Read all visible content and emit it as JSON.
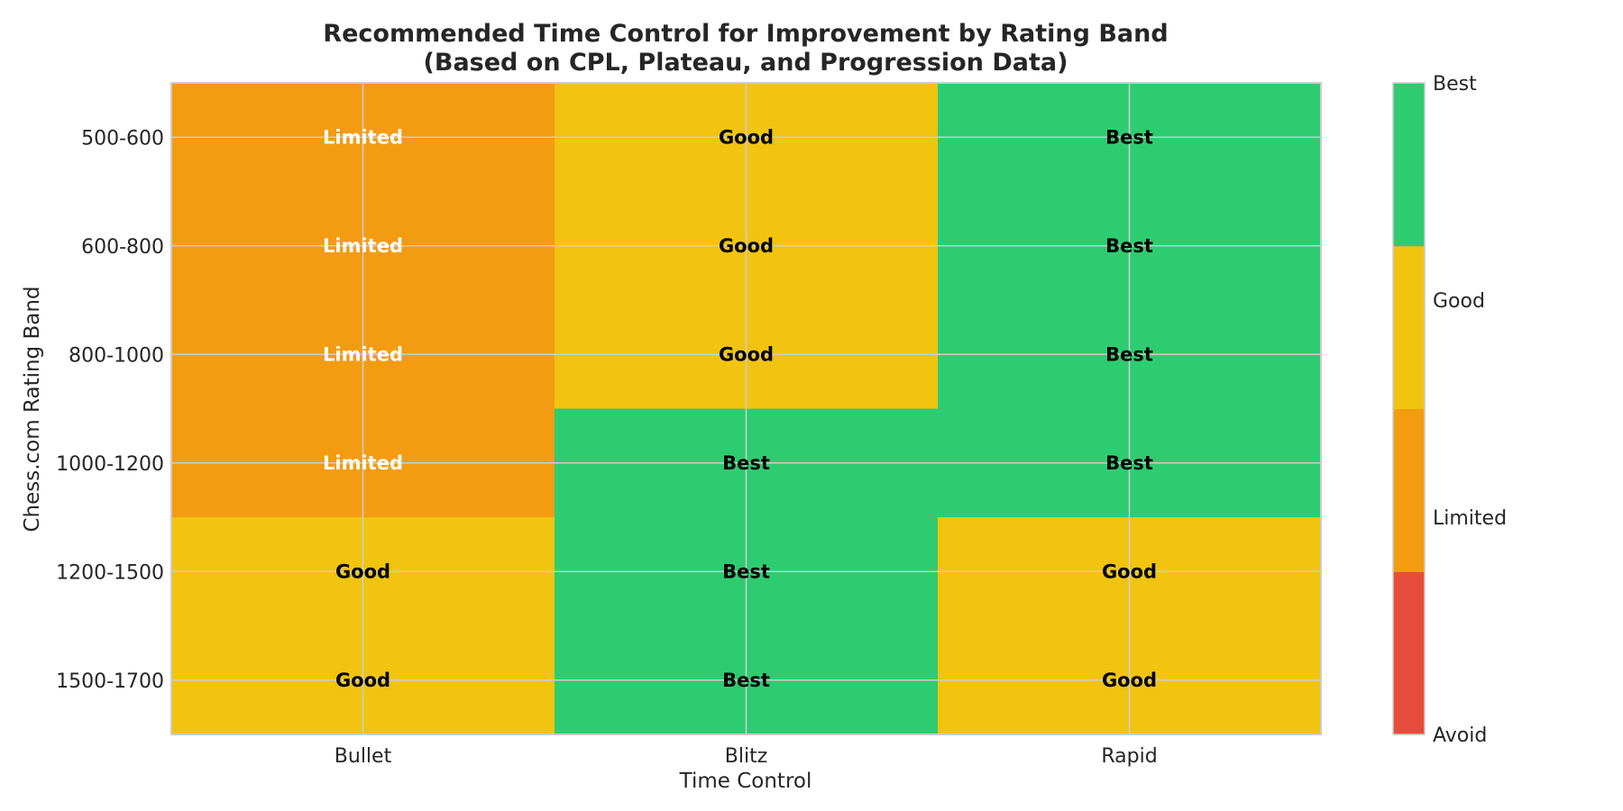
{
  "chart_data": {
    "type": "heatmap",
    "title": [
      "Recommended Time Control for Improvement by Rating Band",
      "(Based on CPL, Plateau, and Progression Data)"
    ],
    "xlabel": "Time Control",
    "ylabel": "Chess.com Rating Band",
    "x_categories": [
      "Bullet",
      "Blitz",
      "Rapid"
    ],
    "y_categories": [
      "500-600",
      "600-800",
      "800-1000",
      "1000-1200",
      "1200-1500",
      "1500-1700"
    ],
    "scale_labels": [
      "Avoid",
      "Limited",
      "Good",
      "Best"
    ],
    "scale_colors": [
      "#e74c3c",
      "#f39c12",
      "#f1c40f",
      "#2ecc71"
    ],
    "values": [
      [
        1,
        2,
        3
      ],
      [
        1,
        2,
        3
      ],
      [
        1,
        2,
        3
      ],
      [
        1,
        3,
        3
      ],
      [
        2,
        3,
        2
      ],
      [
        2,
        3,
        2
      ]
    ],
    "cell_labels": [
      [
        "Limited",
        "Good",
        "Best"
      ],
      [
        "Limited",
        "Good",
        "Best"
      ],
      [
        "Limited",
        "Good",
        "Best"
      ],
      [
        "Limited",
        "Best",
        "Best"
      ],
      [
        "Good",
        "Best",
        "Good"
      ],
      [
        "Good",
        "Best",
        "Good"
      ]
    ],
    "label_text_colors": {
      "Avoid": "#ffffff",
      "Limited": "#ffffff",
      "Good": "#000000",
      "Best": "#000000"
    },
    "grid": true,
    "colorbar": "right"
  }
}
